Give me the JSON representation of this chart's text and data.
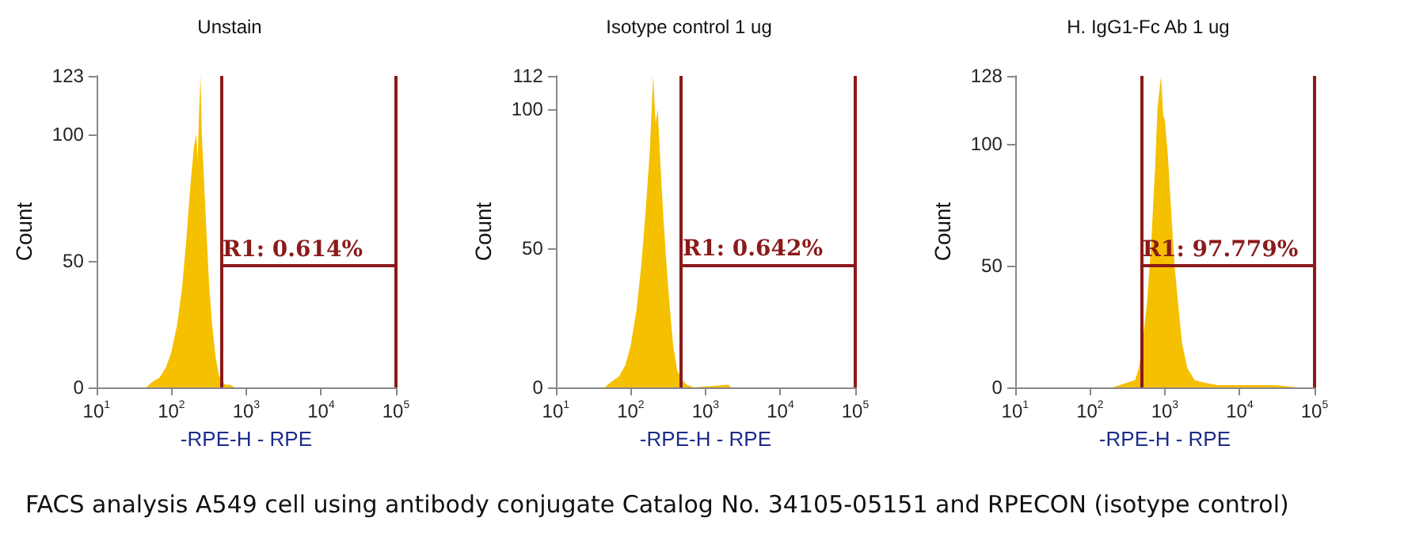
{
  "chart_data": [
    {
      "type": "area",
      "title": "Unstain",
      "xlabel": "-RPE-H - RPE",
      "ylabel": "Count",
      "log": "x",
      "xlim": [
        10,
        100000
      ],
      "xticks": [
        {
          "value": 10,
          "label": "10$^{1}$"
        },
        {
          "value": 100,
          "label": "10$^{2}$"
        },
        {
          "value": 1000,
          "label": "10$^{3}$"
        },
        {
          "value": 10000,
          "label": "10$^{4}$"
        },
        {
          "value": 100000,
          "label": "10$^{5}$"
        }
      ],
      "ylim": [
        0,
        123
      ],
      "yticks": [
        0,
        50,
        100,
        123
      ],
      "x": [
        46,
        55,
        70,
        85,
        100,
        120,
        140,
        160,
        180,
        200,
        215,
        225,
        235,
        245,
        255,
        270,
        290,
        320,
        350,
        390,
        430,
        480,
        540,
        620,
        700
      ],
      "series": [
        {
          "color": "#f5c000",
          "values": [
            0,
            2,
            4,
            8,
            14,
            25,
            40,
            60,
            80,
            95,
            100,
            90,
            110,
            123,
            100,
            85,
            65,
            40,
            25,
            12,
            5,
            2,
            1,
            1,
            0
          ]
        }
      ],
      "ref_lines": [
        {
          "axis": "x",
          "value": 460,
          "color": "#8b1a1a"
        },
        {
          "axis": "x",
          "value": 100000,
          "color": "#8b1a1a"
        }
      ],
      "annotations": [
        {
          "text": "R1: 0.614%",
          "x": 460,
          "y": 48
        },
        "FACS analysis A549 cell using antibody conjugate Catalog No. 34105-05151 and RPECON (isotype control)"
      ]
    },
    {
      "type": "area",
      "title": "Isotype control 1 ug",
      "xlabel": "-RPE-H - RPE",
      "ylabel": "Count",
      "log": "x",
      "xlim": [
        10,
        100000
      ],
      "xticks": [
        {
          "value": 10,
          "label": "10$^{1}$"
        },
        {
          "value": 100,
          "label": "10$^{2}$"
        },
        {
          "value": 1000,
          "label": "10$^{3}$"
        },
        {
          "value": 10000,
          "label": "10$^{4}$"
        },
        {
          "value": 100000,
          "label": "10$^{5}$"
        }
      ],
      "ylim": [
        0,
        112
      ],
      "yticks": [
        0,
        50,
        100,
        112
      ],
      "x": [
        45,
        55,
        70,
        85,
        100,
        120,
        140,
        160,
        180,
        200,
        215,
        230,
        250,
        275,
        300,
        330,
        370,
        420,
        480,
        560,
        700,
        2000,
        2200
      ],
      "series": [
        {
          "color": "#f5c000",
          "values": [
            0,
            2,
            4,
            8,
            15,
            28,
            45,
            65,
            85,
            112,
            95,
            100,
            80,
            60,
            45,
            30,
            15,
            6,
            3,
            1,
            0,
            1,
            0
          ]
        }
      ],
      "ref_lines": [
        {
          "axis": "x",
          "value": 470,
          "color": "#8b1a1a"
        },
        {
          "axis": "x",
          "value": 100000,
          "color": "#8b1a1a"
        }
      ],
      "annotations": [
        {
          "text": "R1: 0.642%",
          "x": 470,
          "y": 44
        }
      ]
    },
    {
      "type": "area",
      "title": "H. IgG1-Fc Ab 1 ug",
      "xlabel": "-RPE-H - RPE",
      "ylabel": "Count",
      "log": "x",
      "xlim": [
        10,
        100000
      ],
      "xticks": [
        {
          "value": 10,
          "label": "10$^{1}$"
        },
        {
          "value": 100,
          "label": "10$^{2}$"
        },
        {
          "value": 1000,
          "label": "10$^{3}$"
        },
        {
          "value": 10000,
          "label": "10$^{4}$"
        },
        {
          "value": 100000,
          "label": "10$^{5}$"
        }
      ],
      "ylim": [
        0,
        128
      ],
      "yticks": [
        0,
        50,
        100,
        128
      ],
      "x": [
        200,
        250,
        320,
        400,
        450,
        500,
        580,
        660,
        740,
        800,
        890,
        950,
        1000,
        1100,
        1200,
        1350,
        1500,
        1700,
        2000,
        2500,
        3300,
        5000,
        10000,
        30000,
        60000
      ],
      "series": [
        {
          "color": "#f5c000",
          "values": [
            0,
            1,
            2,
            3,
            8,
            18,
            35,
            60,
            90,
            115,
            128,
            112,
            110,
            95,
            75,
            50,
            35,
            18,
            8,
            3,
            2,
            1,
            1,
            1,
            0
          ]
        }
      ],
      "ref_lines": [
        {
          "axis": "x",
          "value": 480,
          "color": "#8b1a1a"
        },
        {
          "axis": "x",
          "value": 100000,
          "color": "#8b1a1a"
        }
      ],
      "annotations": [
        {
          "text": "R1: 97.779%",
          "x": 480,
          "y": 50
        }
      ]
    }
  ]
}
